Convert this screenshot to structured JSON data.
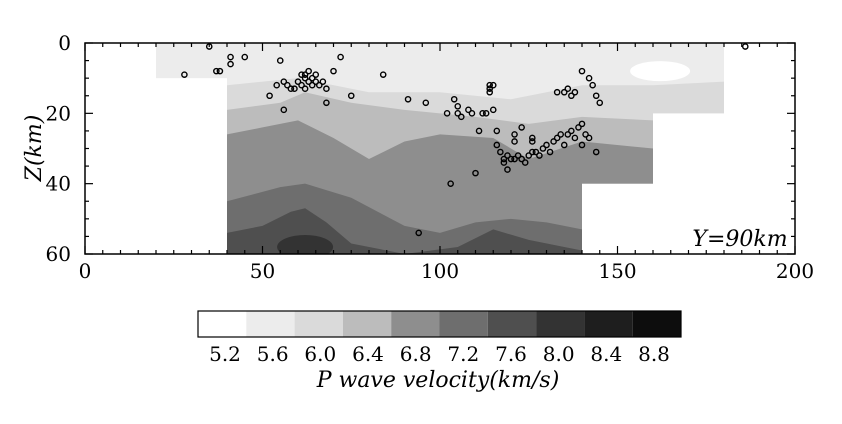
{
  "chart_data": {
    "type": "heatmap",
    "subtype": "velocity cross-section with earthquake hypocenters",
    "xlim": [
      0,
      200
    ],
    "ylim": [
      0,
      60
    ],
    "y_inverted": true,
    "xticks": [
      0,
      50,
      100,
      150,
      200
    ],
    "yticks": [
      0,
      20,
      40,
      60
    ],
    "ylabel": "Z(km)",
    "annotation": "Y=90km",
    "colorbar": {
      "title": "P wave velocity(km/s)",
      "ticks": [
        "5.2",
        "5.6",
        "6.0",
        "6.4",
        "6.8",
        "7.2",
        "7.6",
        "8.0",
        "8.4",
        "8.8"
      ],
      "colors": [
        "#ffffff",
        "#ececec",
        "#dadada",
        "#bcbcbc",
        "#8e8e8e",
        "#6e6e6e",
        "#4f4f4f",
        "#333333",
        "#1e1e1e",
        "#0d0d0d"
      ]
    },
    "coverage": [
      {
        "x": [
          20,
          40
        ],
        "z": [
          0,
          10
        ]
      },
      {
        "x": [
          40,
          180
        ],
        "z": [
          0,
          20
        ]
      },
      {
        "x": [
          40,
          140
        ],
        "z": [
          20,
          60
        ]
      },
      {
        "x": [
          140,
          160
        ],
        "z": [
          20,
          40
        ]
      }
    ],
    "layers": [
      {
        "velocity": "6.0-6.4",
        "boundary": [
          [
            40,
            12
          ],
          [
            60,
            10
          ],
          [
            80,
            14
          ],
          [
            100,
            14
          ],
          [
            120,
            16
          ],
          [
            140,
            12
          ],
          [
            160,
            12
          ],
          [
            180,
            11
          ]
        ]
      },
      {
        "velocity": "6.4-6.8",
        "boundary": [
          [
            40,
            19
          ],
          [
            55,
            17
          ],
          [
            62,
            14
          ],
          [
            75,
            17
          ],
          [
            90,
            19
          ],
          [
            110,
            21
          ],
          [
            125,
            23
          ],
          [
            140,
            21
          ],
          [
            160,
            22
          ]
        ]
      },
      {
        "velocity": "6.8-7.2",
        "boundary": [
          [
            40,
            26
          ],
          [
            50,
            24
          ],
          [
            60,
            22
          ],
          [
            70,
            27
          ],
          [
            80,
            33
          ],
          [
            90,
            28
          ],
          [
            100,
            26
          ],
          [
            115,
            27
          ],
          [
            125,
            33
          ],
          [
            140,
            28
          ],
          [
            160,
            30
          ]
        ]
      },
      {
        "velocity": "7.2-7.6",
        "boundary": [
          [
            40,
            45
          ],
          [
            55,
            41
          ],
          [
            62,
            40
          ],
          [
            75,
            44
          ],
          [
            90,
            52
          ],
          [
            100,
            54
          ],
          [
            110,
            51
          ],
          [
            120,
            50
          ],
          [
            130,
            51
          ],
          [
            140,
            53
          ]
        ]
      },
      {
        "velocity": "7.6-8.0",
        "boundary": [
          [
            40,
            54
          ],
          [
            50,
            52
          ],
          [
            58,
            48
          ],
          [
            62,
            47
          ],
          [
            68,
            51
          ],
          [
            75,
            57
          ],
          [
            90,
            60
          ],
          [
            105,
            58
          ],
          [
            115,
            53
          ],
          [
            125,
            56
          ],
          [
            135,
            58
          ],
          [
            140,
            59
          ]
        ]
      }
    ],
    "hypocenters": [
      [
        28,
        9
      ],
      [
        35,
        1
      ],
      [
        37,
        8
      ],
      [
        38,
        8
      ],
      [
        41,
        4
      ],
      [
        41,
        6
      ],
      [
        45,
        4
      ],
      [
        52,
        15
      ],
      [
        54,
        12
      ],
      [
        55,
        5
      ],
      [
        56,
        11
      ],
      [
        56,
        19
      ],
      [
        57,
        12
      ],
      [
        58,
        13
      ],
      [
        59,
        13
      ],
      [
        60,
        11
      ],
      [
        61,
        12
      ],
      [
        61,
        9
      ],
      [
        62,
        10
      ],
      [
        62,
        9
      ],
      [
        62,
        13
      ],
      [
        63,
        8
      ],
      [
        63,
        11
      ],
      [
        64,
        10
      ],
      [
        64,
        12
      ],
      [
        65,
        9
      ],
      [
        65,
        11
      ],
      [
        66,
        12
      ],
      [
        67,
        11
      ],
      [
        68,
        17
      ],
      [
        68,
        13
      ],
      [
        70,
        8
      ],
      [
        72,
        4
      ],
      [
        75,
        15
      ],
      [
        84,
        9
      ],
      [
        91,
        16
      ],
      [
        94,
        54
      ],
      [
        96,
        17
      ],
      [
        102,
        20
      ],
      [
        103,
        40
      ],
      [
        104,
        16
      ],
      [
        105,
        20
      ],
      [
        105,
        18
      ],
      [
        106,
        21
      ],
      [
        108,
        19
      ],
      [
        109,
        20
      ],
      [
        111,
        25
      ],
      [
        112,
        20
      ],
      [
        113,
        20
      ],
      [
        114,
        12
      ],
      [
        114,
        13
      ],
      [
        114,
        14
      ],
      [
        115,
        19
      ],
      [
        115,
        12
      ],
      [
        116,
        25
      ],
      [
        116,
        29
      ],
      [
        117,
        31
      ],
      [
        118,
        33
      ],
      [
        118,
        34
      ],
      [
        119,
        32
      ],
      [
        120,
        33
      ],
      [
        121,
        28
      ],
      [
        121,
        33
      ],
      [
        122,
        32
      ],
      [
        123,
        33
      ],
      [
        124,
        34
      ],
      [
        125,
        32
      ],
      [
        126,
        31
      ],
      [
        126,
        28
      ],
      [
        127,
        31
      ],
      [
        128,
        32
      ],
      [
        129,
        30
      ],
      [
        130,
        29
      ],
      [
        131,
        31
      ],
      [
        132,
        28
      ],
      [
        133,
        27
      ],
      [
        134,
        26
      ],
      [
        135,
        29
      ],
      [
        136,
        26
      ],
      [
        137,
        25
      ],
      [
        138,
        27
      ],
      [
        139,
        24
      ],
      [
        140,
        23
      ],
      [
        140,
        29
      ],
      [
        141,
        26
      ],
      [
        142,
        27
      ],
      [
        144,
        31
      ],
      [
        144,
        15
      ],
      [
        140,
        8
      ],
      [
        142,
        10
      ],
      [
        143,
        12
      ],
      [
        133,
        14
      ],
      [
        135,
        14
      ],
      [
        136,
        13
      ],
      [
        137,
        15
      ],
      [
        138,
        14
      ],
      [
        145,
        17
      ],
      [
        121,
        26
      ],
      [
        123,
        24
      ],
      [
        126,
        27
      ],
      [
        110,
        37
      ],
      [
        119,
        36
      ],
      [
        186,
        1
      ]
    ]
  }
}
